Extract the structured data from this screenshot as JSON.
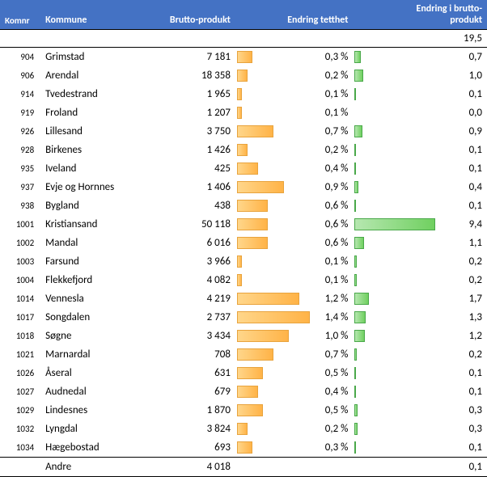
{
  "header": {
    "komnr": "Komnr",
    "kommune": "Kommune",
    "brutto": "Brutto-produkt",
    "endring_tetthet": "Endring tetthet",
    "endring_brutto": "Endring i brutto-\nprodukt"
  },
  "total_row": {
    "value": "19,5"
  },
  "colors": {
    "header_bg": "#4472c4",
    "header_fg": "#ffffff",
    "bar_orange_from": "#ffd68a",
    "bar_orange_to": "#ffb347",
    "bar_orange_border": "#e8a33d",
    "bar_green_from": "#b6e7b0",
    "bar_green_to": "#70d060",
    "bar_green_border": "#4aa84a"
  },
  "scales": {
    "tetthet_max_pct": 1.5,
    "brutto_endring_max": 10.0
  },
  "rows": [
    {
      "komnr": "904",
      "kommune": "Grimstad",
      "brutto": "7 181",
      "tetthet_pct": 0.3,
      "tetthet_lbl": "0,3 %",
      "prod": 0.7,
      "prod_lbl": "0,7"
    },
    {
      "komnr": "906",
      "kommune": "Arendal",
      "brutto": "18 358",
      "tetthet_pct": 0.2,
      "tetthet_lbl": "0,2 %",
      "prod": 1.0,
      "prod_lbl": "1,0"
    },
    {
      "komnr": "914",
      "kommune": "Tvedestrand",
      "brutto": "1 965",
      "tetthet_pct": 0.1,
      "tetthet_lbl": "0,1 %",
      "prod": 0.1,
      "prod_lbl": "0,1"
    },
    {
      "komnr": "919",
      "kommune": "Froland",
      "brutto": "1 207",
      "tetthet_pct": 0.1,
      "tetthet_lbl": "0,1 %",
      "prod": 0.0,
      "prod_lbl": "0,0"
    },
    {
      "komnr": "926",
      "kommune": "Lillesand",
      "brutto": "3 750",
      "tetthet_pct": 0.7,
      "tetthet_lbl": "0,7 %",
      "prod": 0.9,
      "prod_lbl": "0,9"
    },
    {
      "komnr": "928",
      "kommune": "Birkenes",
      "brutto": "1 426",
      "tetthet_pct": 0.2,
      "tetthet_lbl": "0,2 %",
      "prod": 0.1,
      "prod_lbl": "0,1"
    },
    {
      "komnr": "935",
      "kommune": "Iveland",
      "brutto": "425",
      "tetthet_pct": 0.4,
      "tetthet_lbl": "0,4 %",
      "prod": 0.1,
      "prod_lbl": "0,1"
    },
    {
      "komnr": "937",
      "kommune": "Evje og Hornnes",
      "brutto": "1 406",
      "tetthet_pct": 0.9,
      "tetthet_lbl": "0,9 %",
      "prod": 0.4,
      "prod_lbl": "0,4"
    },
    {
      "komnr": "938",
      "kommune": "Bygland",
      "brutto": "438",
      "tetthet_pct": 0.6,
      "tetthet_lbl": "0,6 %",
      "prod": 0.1,
      "prod_lbl": "0,1"
    },
    {
      "komnr": "1001",
      "kommune": "Kristiansand",
      "brutto": "50 118",
      "tetthet_pct": 0.6,
      "tetthet_lbl": "0,6 %",
      "prod": 9.4,
      "prod_lbl": "9,4"
    },
    {
      "komnr": "1002",
      "kommune": "Mandal",
      "brutto": "6 016",
      "tetthet_pct": 0.6,
      "tetthet_lbl": "0,6 %",
      "prod": 1.1,
      "prod_lbl": "1,1"
    },
    {
      "komnr": "1003",
      "kommune": "Farsund",
      "brutto": "3 966",
      "tetthet_pct": 0.1,
      "tetthet_lbl": "0,1 %",
      "prod": 0.2,
      "prod_lbl": "0,2"
    },
    {
      "komnr": "1004",
      "kommune": "Flekkefjord",
      "brutto": "4 082",
      "tetthet_pct": 0.1,
      "tetthet_lbl": "0,1 %",
      "prod": 0.2,
      "prod_lbl": "0,2"
    },
    {
      "komnr": "1014",
      "kommune": "Vennesla",
      "brutto": "4 219",
      "tetthet_pct": 1.2,
      "tetthet_lbl": "1,2 %",
      "prod": 1.7,
      "prod_lbl": "1,7"
    },
    {
      "komnr": "1017",
      "kommune": "Songdalen",
      "brutto": "2 737",
      "tetthet_pct": 1.4,
      "tetthet_lbl": "1,4 %",
      "prod": 1.3,
      "prod_lbl": "1,3"
    },
    {
      "komnr": "1018",
      "kommune": "Søgne",
      "brutto": "3 434",
      "tetthet_pct": 1.0,
      "tetthet_lbl": "1,0 %",
      "prod": 1.2,
      "prod_lbl": "1,2"
    },
    {
      "komnr": "1021",
      "kommune": "Marnardal",
      "brutto": "708",
      "tetthet_pct": 0.7,
      "tetthet_lbl": "0,7 %",
      "prod": 0.2,
      "prod_lbl": "0,2"
    },
    {
      "komnr": "1026",
      "kommune": "Åseral",
      "brutto": "631",
      "tetthet_pct": 0.5,
      "tetthet_lbl": "0,5 %",
      "prod": 0.1,
      "prod_lbl": "0,1"
    },
    {
      "komnr": "1027",
      "kommune": "Audnedal",
      "brutto": "679",
      "tetthet_pct": 0.4,
      "tetthet_lbl": "0,4 %",
      "prod": 0.1,
      "prod_lbl": "0,1"
    },
    {
      "komnr": "1029",
      "kommune": "Lindesnes",
      "brutto": "1 870",
      "tetthet_pct": 0.5,
      "tetthet_lbl": "0,5 %",
      "prod": 0.3,
      "prod_lbl": "0,3"
    },
    {
      "komnr": "1032",
      "kommune": "Lyngdal",
      "brutto": "3 824",
      "tetthet_pct": 0.2,
      "tetthet_lbl": "0,2 %",
      "prod": 0.3,
      "prod_lbl": "0,3"
    },
    {
      "komnr": "1034",
      "kommune": "Hægebostad",
      "brutto": "693",
      "tetthet_pct": 0.3,
      "tetthet_lbl": "0,3 %",
      "prod": 0.1,
      "prod_lbl": "0,1"
    }
  ],
  "andre_row": {
    "kommune": "Andre",
    "brutto": "4 018",
    "prod_lbl": "0,1",
    "prod": 0.1
  }
}
